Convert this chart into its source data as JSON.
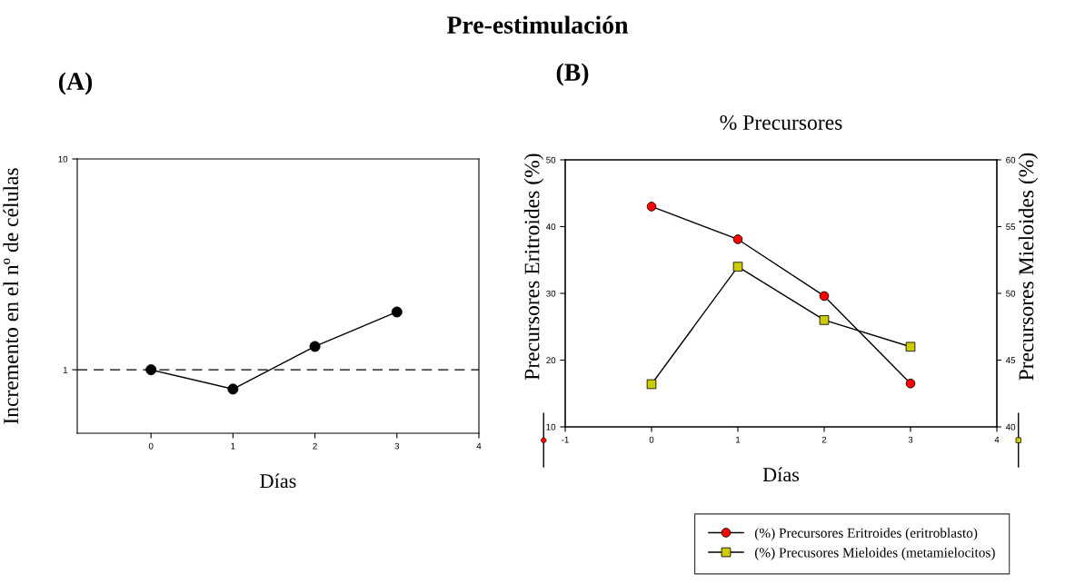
{
  "chart_data": [
    {
      "type": "line",
      "annotations": [
        "Pre-estimulación",
        "(A)"
      ],
      "xlabel": "Días",
      "ylabel": "Incremento en el nº de células",
      "x": [
        0,
        1,
        2,
        3
      ],
      "series": [
        {
          "color": "#000000",
          "values": [
            1,
            0.81,
            1.29,
            1.88
          ]
        }
      ],
      "xlim": [
        -0.9,
        4
      ],
      "xticks": [
        0,
        1,
        2,
        3,
        4
      ],
      "ylim": [
        0.5,
        10
      ],
      "yticks": [
        1,
        10
      ],
      "log": "y",
      "marker": "circle",
      "line_style": "solid",
      "ref_lines": [
        {
          "axis": "y",
          "value": 1,
          "color": "#000000",
          "line_style": "dashed"
        }
      ],
      "grid": false,
      "legend": false
    },
    {
      "type": "line",
      "title": "% Precursores",
      "annotations": [
        "(B)"
      ],
      "xlabel": "Días",
      "ylabel": "Precursores Eritroides (%)",
      "y2label": "Precursores Mieloides (%)",
      "x": [
        0,
        1,
        2,
        3
      ],
      "series": [
        {
          "name": "(%) Precursores Eritroides (eritroblasto)",
          "color": "#ff0000",
          "marker": "circle",
          "values": [
            43.0,
            38.1,
            29.6,
            16.5
          ]
        },
        {
          "name": "(%) Precusores Mieloides (metamielocitos)",
          "color": "#cccc00",
          "marker": "square",
          "axis": "y2",
          "values": [
            43.2,
            52.0,
            48.0,
            46.0
          ]
        }
      ],
      "xlim": [
        -1,
        4
      ],
      "xticks": [
        -1,
        0,
        1,
        2,
        3,
        4
      ],
      "ylim": [
        10,
        50
      ],
      "yticks": [
        10,
        20,
        30,
        40,
        50
      ],
      "y2lim": [
        40,
        60
      ],
      "y2ticks": [
        40,
        45,
        50,
        55,
        60
      ],
      "line_style": "solid",
      "grid": false,
      "legend": "bottom"
    }
  ]
}
